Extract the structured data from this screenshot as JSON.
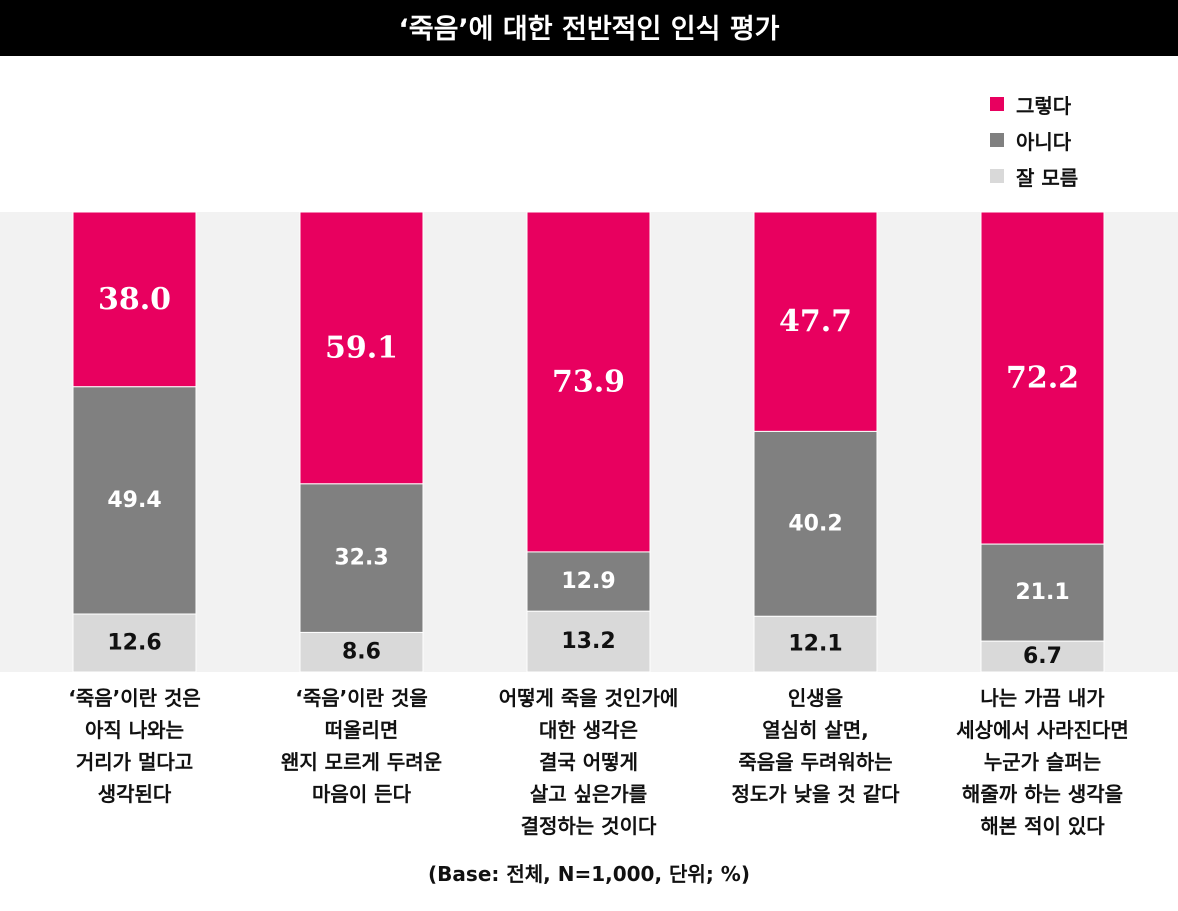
{
  "chart_data": {
    "type": "bar",
    "stacked": true,
    "title": "‘죽음’에 대한 전반적인 인식 평가",
    "categories": [
      "‘죽음’이란 것은\n아직 나와는\n거리가 멀다고\n생각된다",
      "‘죽음’이란 것을\n떠올리면\n왠지 모르게 두려운\n마음이 든다",
      "어떻게 죽을 것인가에\n대한 생각은\n결국 어떻게\n살고 싶은가를\n결정하는 것이다",
      "인생을\n열심히 살면,\n죽음을 두려워하는\n정도가 낮을 것 같다",
      "나는 가끔 내가\n세상에서 사라진다면\n누군가 슬퍼는\n해줄까 하는 생각을\n해본 적이 있다"
    ],
    "series": [
      {
        "name": "그렇다",
        "color": "#E8005F",
        "text_color": "#FFFFFF",
        "values": [
          38.0,
          59.1,
          73.9,
          47.7,
          72.2
        ],
        "labels": [
          "38.0",
          "59.1",
          "73.9",
          "47.7",
          "72.2"
        ]
      },
      {
        "name": "아니다",
        "color": "#808080",
        "text_color": "#FFFFFF",
        "values": [
          49.4,
          32.3,
          12.9,
          40.2,
          21.1
        ],
        "labels": [
          "49.4",
          "32.3",
          "12.9",
          "40.2",
          "21.1"
        ]
      },
      {
        "name": "잘 모름",
        "color": "#D9D9D9",
        "text_color": "#111111",
        "values": [
          12.6,
          8.6,
          13.2,
          12.1,
          6.7
        ],
        "labels": [
          "12.6",
          "8.6",
          "13.2",
          "12.1",
          "6.7"
        ]
      }
    ],
    "ylim": [
      0,
      100
    ],
    "stack_order": "top-to-bottom",
    "legend_position": "top-right",
    "grid": false,
    "plot_background": "#F2F2F2",
    "footnote": "(Base: 전체, N=1,000, 단위; %)"
  }
}
